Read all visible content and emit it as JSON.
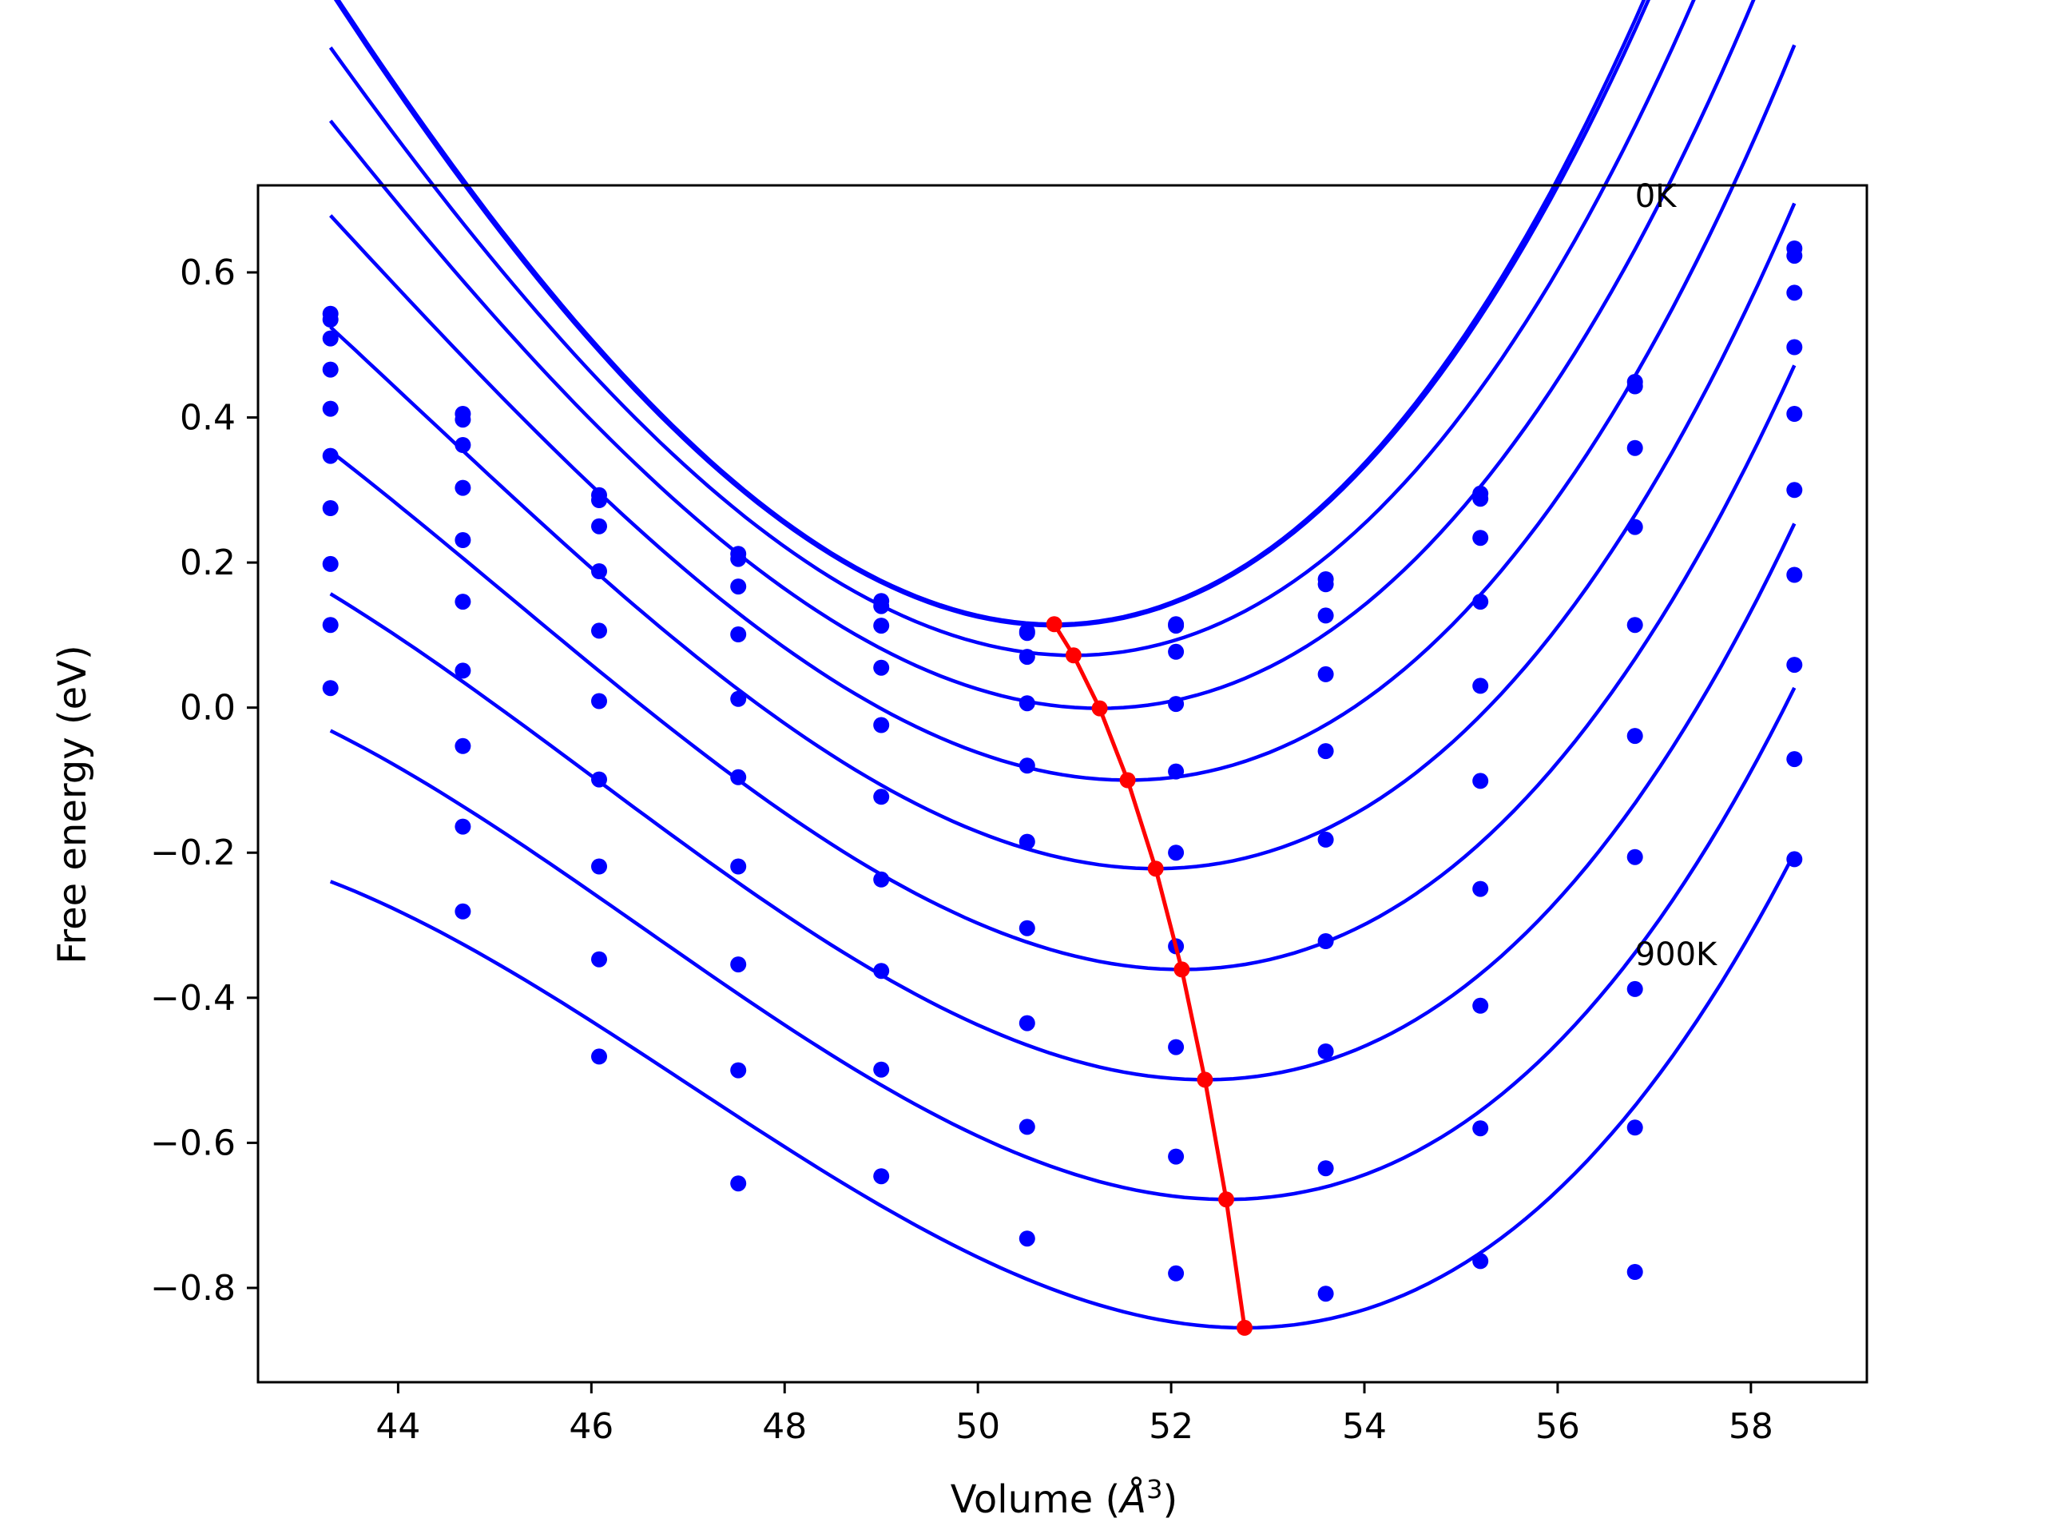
{
  "chart_data": {
    "type": "scatter",
    "title": "",
    "xlabel": "Volume (",
    "xlabel_unit": "Å",
    "xlabel_exponent": "3",
    "xlabel_close": ")",
    "ylabel": "Free energy (eV)",
    "xlim": [
      42.55,
      59.2
    ],
    "ylim": [
      -0.93,
      0.72
    ],
    "xticks": [
      44,
      46,
      48,
      50,
      52,
      54,
      56,
      58
    ],
    "yticks": [
      -0.8,
      -0.6,
      -0.4,
      -0.2,
      0.0,
      0.2,
      0.4,
      0.6
    ],
    "xtick_labels": [
      "44",
      "46",
      "48",
      "50",
      "52",
      "54",
      "56",
      "58"
    ],
    "ytick_labels": [
      "−0.8",
      "−0.6",
      "−0.4",
      "−0.2",
      "0.0",
      "0.2",
      "0.4",
      "0.6"
    ],
    "grid": false,
    "colors": {
      "fit": "#0000ff",
      "points": "#0000ff",
      "minimum": "#ff0000",
      "axes": "#000000"
    },
    "annotations": [
      {
        "text": "0K",
        "x": 56.8,
        "y": 0.69
      },
      {
        "text": "900K",
        "x": 56.8,
        "y": -0.355
      }
    ],
    "x": [
      43.3,
      44.67,
      46.08,
      47.52,
      49.0,
      50.51,
      52.05,
      53.6,
      55.2,
      56.8,
      58.45
    ],
    "series": [
      {
        "values": [
          0.543,
          0.405,
          0.293,
          0.212,
          0.147,
          0.105,
          0.115,
          0.177,
          0.295,
          0.449,
          0.633
        ],
        "fit": {
          "v0": 50.79,
          "e0": 0.115,
          "a": 0.01975,
          "b": 0.00055
        }
      },
      {
        "values": [
          0.535,
          0.397,
          0.286,
          0.205,
          0.14,
          0.103,
          0.113,
          0.17,
          0.288,
          0.443,
          0.623
        ],
        "fit": {
          "v0": 50.79,
          "e0": 0.113,
          "a": 0.01955,
          "b": 0.00053
        }
      },
      {
        "values": [
          0.509,
          0.362,
          0.25,
          0.167,
          0.113,
          0.07,
          0.077,
          0.127,
          0.234,
          0.358,
          0.572
        ],
        "fit": {
          "v0": 50.99,
          "e0": 0.072,
          "a": 0.0184,
          "b": 0.00055
        }
      },
      {
        "values": [
          0.466,
          0.303,
          0.188,
          0.101,
          0.055,
          0.006,
          0.005,
          0.046,
          0.146,
          0.249,
          0.497
        ],
        "fit": {
          "v0": 51.26,
          "e0": -0.001,
          "a": 0.0174,
          "b": 0.00058
        }
      },
      {
        "values": [
          0.412,
          0.231,
          0.106,
          0.012,
          -0.024,
          -0.08,
          -0.088,
          -0.06,
          0.03,
          0.114,
          0.405
        ],
        "fit": {
          "v0": 51.55,
          "e0": -0.1,
          "a": 0.0168,
          "b": 0.00065
        }
      },
      {
        "values": [
          0.347,
          0.146,
          0.009,
          -0.096,
          -0.123,
          -0.185,
          -0.2,
          -0.182,
          -0.101,
          -0.039,
          0.3
        ],
        "fit": {
          "v0": 51.84,
          "e0": -0.222,
          "a": 0.0163,
          "b": 0.00071
        }
      },
      {
        "values": [
          0.275,
          0.051,
          -0.099,
          -0.219,
          -0.237,
          -0.304,
          -0.329,
          -0.322,
          -0.25,
          -0.206,
          0.183
        ],
        "fit": {
          "v0": 52.11,
          "e0": -0.361,
          "a": 0.0159,
          "b": 0.00076
        }
      },
      {
        "values": [
          0.198,
          -0.053,
          -0.219,
          -0.354,
          -0.363,
          -0.435,
          -0.468,
          -0.474,
          -0.411,
          -0.388,
          0.059
        ],
        "fit": {
          "v0": 52.35,
          "e0": -0.513,
          "a": 0.0156,
          "b": 0.00082
        }
      },
      {
        "values": [
          0.114,
          -0.164,
          -0.347,
          -0.5,
          -0.499,
          -0.578,
          -0.619,
          -0.635,
          -0.58,
          -0.579,
          -0.071
        ],
        "fit": {
          "v0": 52.57,
          "e0": -0.678,
          "a": 0.0154,
          "b": 0.00085
        }
      },
      {
        "values": [
          0.027,
          -0.281,
          -0.481,
          -0.656,
          -0.646,
          -0.732,
          -0.78,
          -0.808,
          -0.763,
          -0.778,
          -0.209
        ],
        "fit": {
          "v0": 52.76,
          "e0": -0.855,
          "a": 0.0152,
          "b": 0.00088
        }
      }
    ],
    "minimum_path": {
      "x": [
        50.79,
        50.99,
        51.26,
        51.55,
        51.84,
        52.11,
        52.35,
        52.57,
        52.76
      ],
      "y": [
        0.115,
        0.072,
        -0.001,
        -0.1,
        -0.222,
        -0.361,
        -0.513,
        -0.678,
        -0.855
      ]
    }
  }
}
